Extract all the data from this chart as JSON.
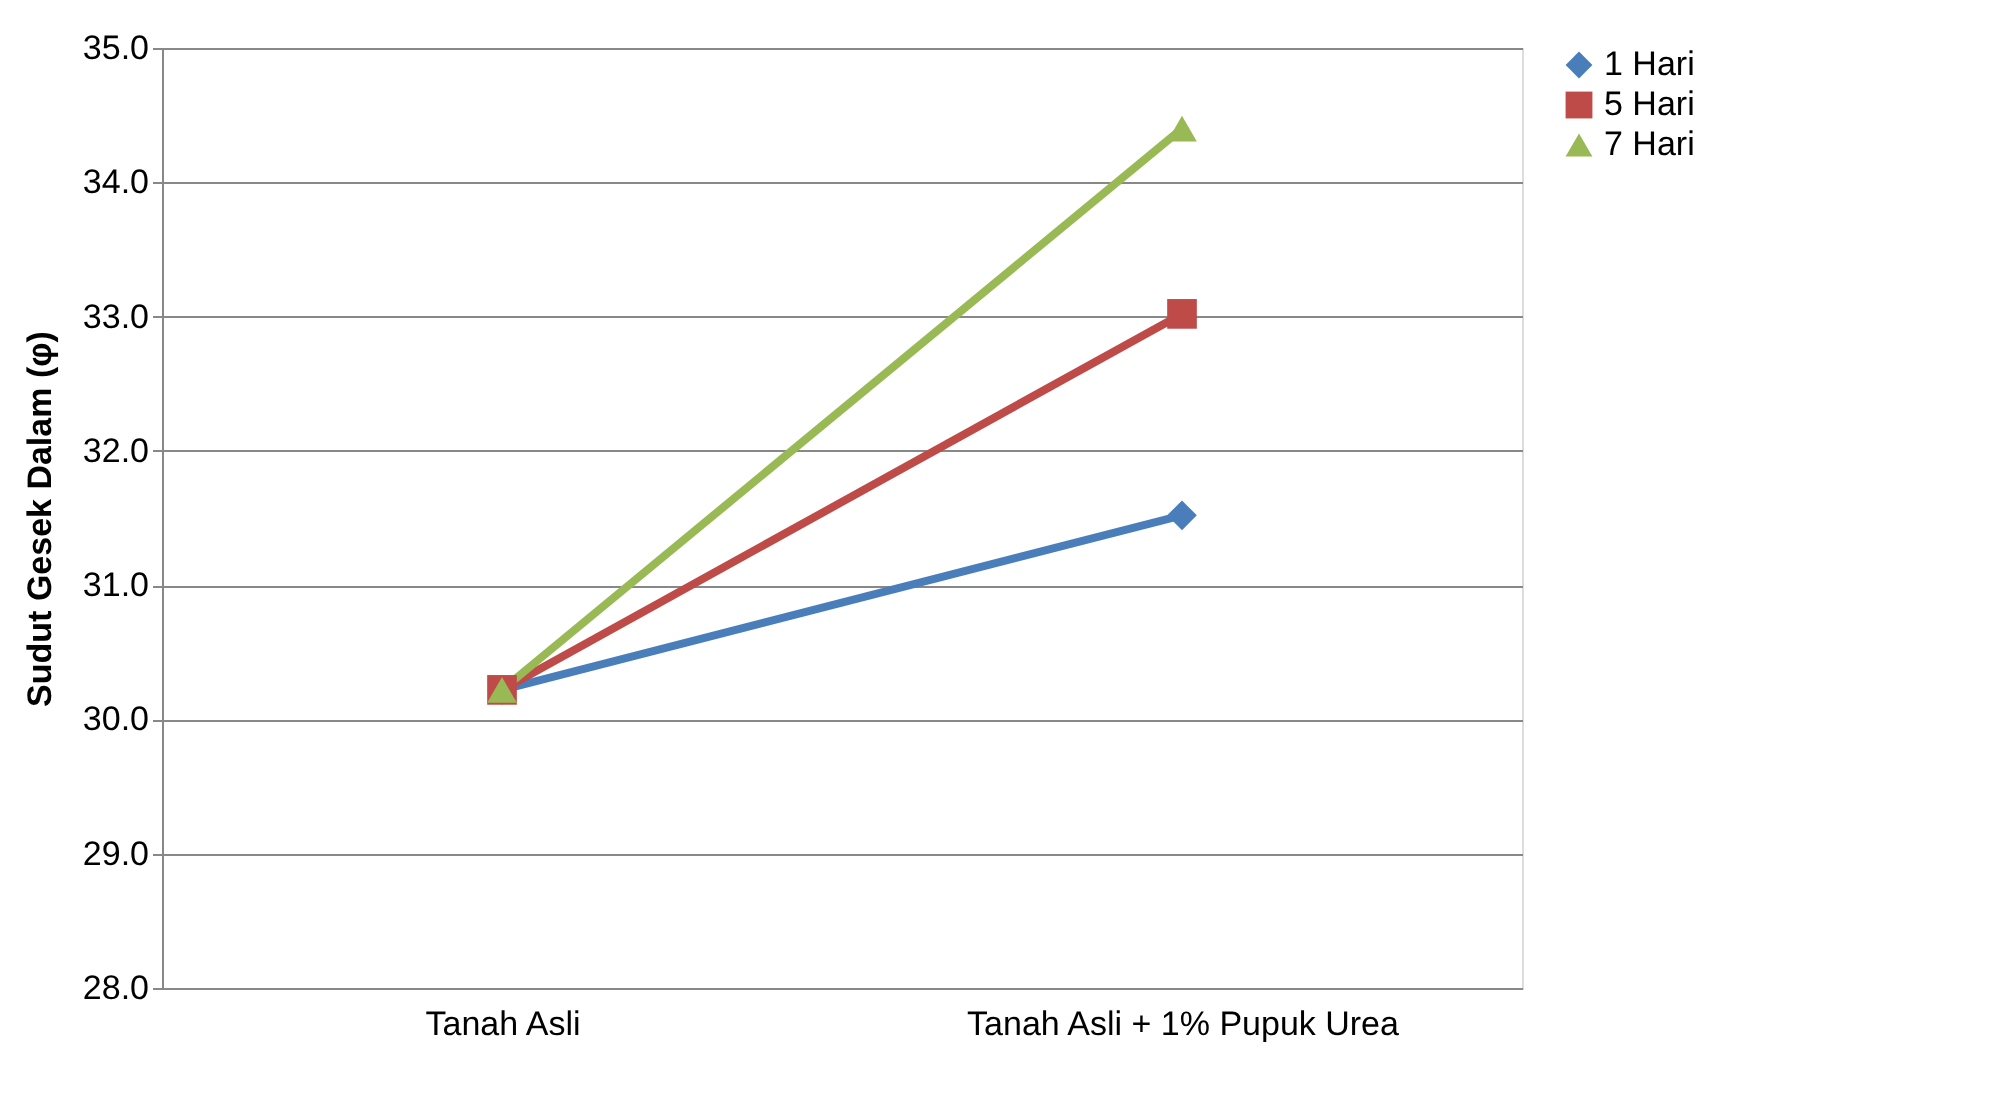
{
  "chart_data": {
    "type": "line",
    "ylabel": "Sudut Gesek Dalam (φ)",
    "categories": [
      "Tanah Asli",
      "Tanah Asli + 1% Pupuk Urea"
    ],
    "series": [
      {
        "name": "1 Hari",
        "color": "#4a7ebb",
        "marker": "diamond",
        "values": [
          30.22,
          31.52
        ]
      },
      {
        "name": "5 Hari",
        "color": "#be4b48",
        "marker": "square",
        "values": [
          30.22,
          33.02
        ]
      },
      {
        "name": "7 Hari",
        "color": "#98b954",
        "marker": "triangle",
        "values": [
          30.22,
          34.4
        ]
      }
    ],
    "ylim": [
      28,
      35
    ],
    "yticks": [
      {
        "value": 28,
        "label": "28.0"
      },
      {
        "value": 29,
        "label": "29.0"
      },
      {
        "value": 30,
        "label": "30.0"
      },
      {
        "value": 31,
        "label": "31.0"
      },
      {
        "value": 32,
        "label": "32.0"
      },
      {
        "value": 33,
        "label": "33.0"
      },
      {
        "value": 34,
        "label": "34.0"
      },
      {
        "value": 35,
        "label": "35.0"
      }
    ],
    "grid": "y",
    "legend": "right",
    "line_style": "solid"
  }
}
